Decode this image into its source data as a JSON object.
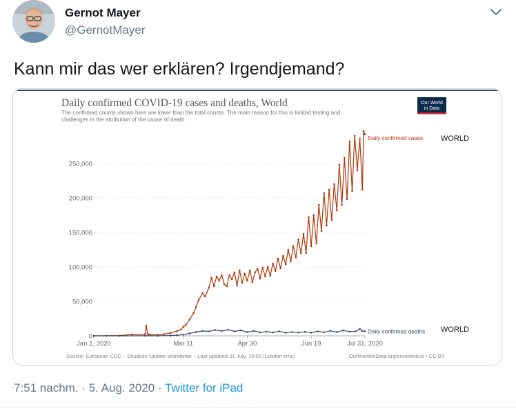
{
  "tweet": {
    "author_name": "Gernot Mayer",
    "handle": "@GernotMayer",
    "text": "Kann mir das wer erklären? Irgendjemand?",
    "time": "7:51 nachm.",
    "date": "5. Aug. 2020",
    "separator": "·",
    "source": "Twitter for iPad"
  },
  "chart_data": {
    "type": "line",
    "title": "Daily confirmed COVID-19 cases and deaths, World",
    "subtitle_lines": [
      "The confirmed counts shown here are lower than the total counts. The main reason for this is limited testing and",
      "challenges in the attribution of the cause of death."
    ],
    "logo_text": [
      "Our World",
      "in Data"
    ],
    "x_ticks": [
      "Jan 1, 2020",
      "Mar 11",
      "Apr 30",
      "Jun 19",
      "Jul 31, 2020"
    ],
    "x_tick_days": [
      0,
      70,
      120,
      170,
      212
    ],
    "y_ticks": [
      "0",
      "50,000",
      "100,000",
      "150,000",
      "200,000",
      "250,000"
    ],
    "y_tick_values": [
      0,
      50000,
      100000,
      150000,
      200000,
      250000
    ],
    "ylim": [
      0,
      300000
    ],
    "xlim_days": [
      0,
      212
    ],
    "annotations": [
      "WORLD",
      "WORLD"
    ],
    "source_text": "Source: European CDC – Situation Update Worldwide – Last updated 31 July, 10:02 (London time)",
    "credit_text": "OurWorldInData.org/coronavirus • CC BY",
    "colors": {
      "cases": "#b13507",
      "deaths": "#3c4e66"
    },
    "series": [
      {
        "name": "Daily confirmed cases",
        "x": [
          0,
          10,
          20,
          30,
          40,
          41,
          42,
          43,
          44,
          50,
          55,
          60,
          65,
          68,
          70,
          72,
          75,
          78,
          80,
          82,
          85,
          87,
          90,
          92,
          94,
          96,
          98,
          100,
          102,
          104,
          106,
          108,
          110,
          112,
          114,
          116,
          118,
          120,
          122,
          124,
          126,
          128,
          130,
          132,
          134,
          136,
          138,
          140,
          142,
          144,
          146,
          148,
          150,
          152,
          154,
          156,
          158,
          160,
          162,
          164,
          166,
          168,
          170,
          172,
          174,
          176,
          178,
          180,
          182,
          184,
          186,
          188,
          190,
          192,
          194,
          196,
          198,
          200,
          202,
          204,
          206,
          208,
          210,
          211,
          212
        ],
        "y": [
          0,
          50,
          400,
          2000,
          2500,
          15000,
          3000,
          2000,
          1500,
          1500,
          2500,
          4000,
          7000,
          9000,
          13000,
          16000,
          24000,
          33000,
          42000,
          52000,
          62000,
          57000,
          70000,
          84000,
          72000,
          86000,
          80000,
          88000,
          75000,
          72000,
          88000,
          82000,
          92000,
          73000,
          95000,
          77000,
          90000,
          80000,
          95000,
          78000,
          92000,
          97000,
          83000,
          99000,
          86000,
          100000,
          87000,
          105000,
          94000,
          112000,
          98000,
          116000,
          104000,
          125000,
          108000,
          130000,
          114000,
          140000,
          120000,
          148000,
          120000,
          172000,
          130000,
          175000,
          134000,
          190000,
          152000,
          207000,
          160000,
          212000,
          168000,
          220000,
          182000,
          248000,
          190000,
          258000,
          198000,
          282000,
          210000,
          290000,
          240000,
          286000,
          212000,
          297000,
          292000
        ]
      },
      {
        "name": "Daily confirmed deaths",
        "x": [
          0,
          20,
          40,
          50,
          60,
          65,
          70,
          75,
          80,
          85,
          90,
          95,
          100,
          105,
          110,
          115,
          120,
          125,
          130,
          135,
          140,
          145,
          150,
          155,
          160,
          165,
          170,
          175,
          180,
          185,
          190,
          195,
          200,
          205,
          208,
          210,
          212
        ],
        "y": [
          0,
          3,
          50,
          100,
          400,
          900,
          1800,
          3500,
          5500,
          7000,
          6500,
          8500,
          7000,
          9000,
          6500,
          8000,
          5500,
          7000,
          5000,
          6000,
          5000,
          6500,
          4500,
          5500,
          4800,
          5800,
          4600,
          6500,
          5200,
          7200,
          5500,
          7800,
          6200,
          6500,
          10000,
          7000,
          6700
        ]
      }
    ]
  }
}
